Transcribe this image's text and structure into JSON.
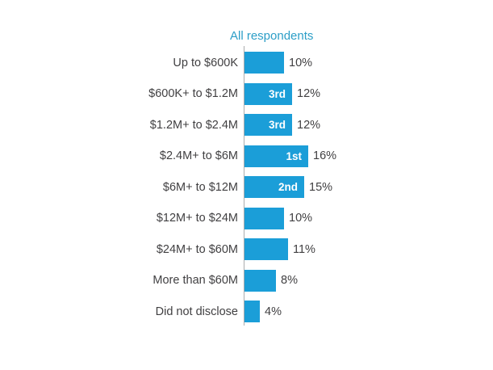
{
  "title": "All respondents",
  "colors": {
    "bar": "#1b9ed8",
    "title_text": "#2c9ec7",
    "label_text": "#414042",
    "rank_text": "#ffffff",
    "axis_line": "#aaacae",
    "background": "#ffffff"
  },
  "chart_data": {
    "type": "bar",
    "orientation": "horizontal",
    "title": "All respondents",
    "categories": [
      "Up to $600K",
      "$600K+ to $1.2M",
      "$1.2M+ to $2.4M",
      "$2.4M+ to $6M",
      "$6M+ to $12M",
      "$12M+ to $24M",
      "$24M+ to $60M",
      "More than $60M",
      "Did not disclose"
    ],
    "values": [
      10,
      12,
      12,
      16,
      15,
      10,
      11,
      8,
      4
    ],
    "ranks": [
      "",
      "3rd",
      "3rd",
      "1st",
      "2nd",
      "",
      "",
      "",
      ""
    ],
    "unit": "%",
    "value_labels": [
      "10%",
      "12%",
      "12%",
      "16%",
      "15%",
      "10%",
      "11%",
      "8%",
      "4%"
    ],
    "xlabel": "",
    "ylabel": "",
    "xlim": [
      0,
      20
    ],
    "grid": false,
    "legend": "none",
    "bar_labels_position": "outside-right",
    "rank_labels_position": "inside-right"
  }
}
